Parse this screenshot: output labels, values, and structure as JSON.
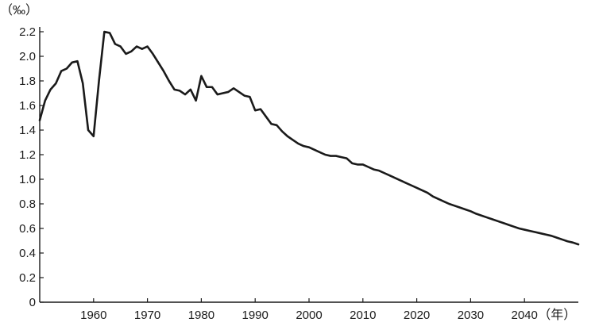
{
  "chart_data": {
    "type": "line",
    "title": "",
    "xlabel": "年",
    "ylabel": "‰",
    "xlabel_display": "（年）",
    "ylabel_display": "（‰）",
    "xlim": [
      1950,
      2050
    ],
    "ylim": [
      0,
      2.2
    ],
    "x_ticks": [
      1960,
      1970,
      1980,
      1990,
      2000,
      2010,
      2020,
      2030,
      2040
    ],
    "y_ticks": [
      {
        "value": 0,
        "label": "0"
      },
      {
        "value": 0.2,
        "label": "0.2"
      },
      {
        "value": 0.4,
        "label": "0.4"
      },
      {
        "value": 0.6,
        "label": "0.6"
      },
      {
        "value": 0.8,
        "label": "0.8"
      },
      {
        "value": 1.0,
        "label": "1.0"
      },
      {
        "value": 1.2,
        "label": "1.2"
      },
      {
        "value": 1.4,
        "label": "1.4"
      },
      {
        "value": 1.6,
        "label": "1.6"
      },
      {
        "value": 1.8,
        "label": "1.8"
      },
      {
        "value": 2.0,
        "label": "2.0"
      },
      {
        "value": 2.2,
        "label": "2.2"
      }
    ],
    "grid": false,
    "series": [
      {
        "color": "#1a1a1a",
        "x": [
          1950,
          1951,
          1952,
          1953,
          1954,
          1955,
          1956,
          1957,
          1958,
          1959,
          1960,
          1961,
          1962,
          1963,
          1964,
          1965,
          1966,
          1967,
          1968,
          1969,
          1970,
          1971,
          1972,
          1973,
          1974,
          1975,
          1976,
          1977,
          1978,
          1979,
          1980,
          1981,
          1982,
          1983,
          1984,
          1985,
          1986,
          1987,
          1988,
          1989,
          1990,
          1991,
          1992,
          1993,
          1994,
          1995,
          1996,
          1997,
          1998,
          1999,
          2000,
          2001,
          2002,
          2003,
          2004,
          2005,
          2006,
          2007,
          2008,
          2009,
          2010,
          2011,
          2012,
          2013,
          2014,
          2015,
          2016,
          2017,
          2018,
          2019,
          2020,
          2021,
          2022,
          2023,
          2024,
          2025,
          2026,
          2027,
          2028,
          2029,
          2030,
          2031,
          2032,
          2033,
          2034,
          2035,
          2036,
          2037,
          2038,
          2039,
          2040,
          2041,
          2042,
          2043,
          2044,
          2045,
          2046,
          2047,
          2048,
          2049,
          2050
        ],
        "values": [
          1.48,
          1.64,
          1.73,
          1.78,
          1.88,
          1.9,
          1.95,
          1.96,
          1.78,
          1.4,
          1.35,
          1.8,
          2.2,
          2.19,
          2.1,
          2.08,
          2.02,
          2.04,
          2.08,
          2.06,
          2.08,
          2.02,
          1.95,
          1.88,
          1.8,
          1.73,
          1.72,
          1.69,
          1.73,
          1.64,
          1.84,
          1.75,
          1.75,
          1.69,
          1.7,
          1.71,
          1.74,
          1.71,
          1.68,
          1.67,
          1.56,
          1.57,
          1.51,
          1.45,
          1.44,
          1.39,
          1.35,
          1.32,
          1.29,
          1.27,
          1.26,
          1.24,
          1.22,
          1.2,
          1.19,
          1.19,
          1.18,
          1.17,
          1.13,
          1.12,
          1.12,
          1.1,
          1.08,
          1.07,
          1.05,
          1.03,
          1.01,
          0.99,
          0.97,
          0.95,
          0.93,
          0.91,
          0.89,
          0.86,
          0.84,
          0.82,
          0.8,
          0.785,
          0.77,
          0.755,
          0.74,
          0.72,
          0.705,
          0.69,
          0.675,
          0.66,
          0.645,
          0.63,
          0.615,
          0.6,
          0.59,
          0.58,
          0.57,
          0.56,
          0.55,
          0.54,
          0.525,
          0.51,
          0.495,
          0.485,
          0.47
        ]
      }
    ]
  }
}
